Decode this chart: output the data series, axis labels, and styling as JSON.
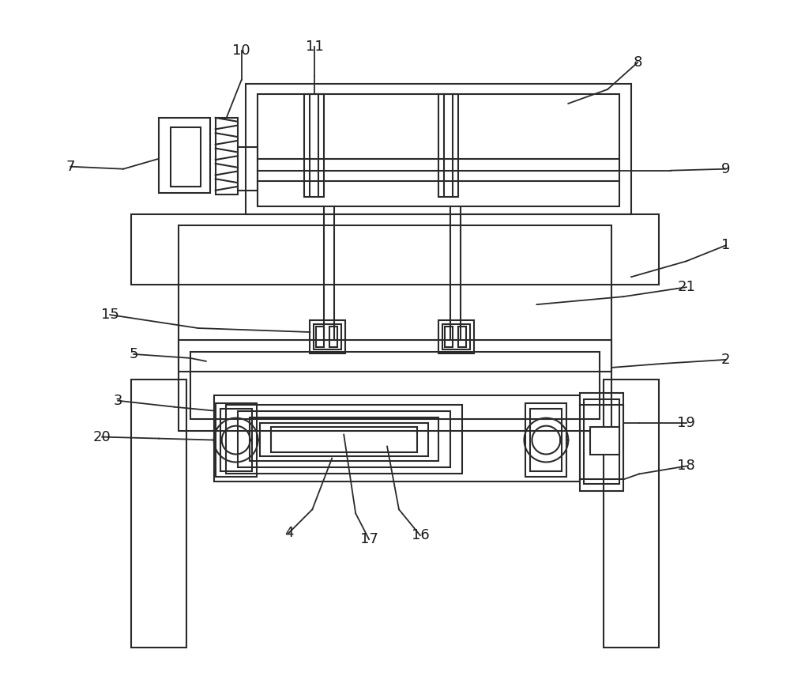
{
  "bg_color": "#ffffff",
  "line_color": "#2a2a2a",
  "lw": 1.5,
  "fig_width": 10.0,
  "fig_height": 8.55
}
